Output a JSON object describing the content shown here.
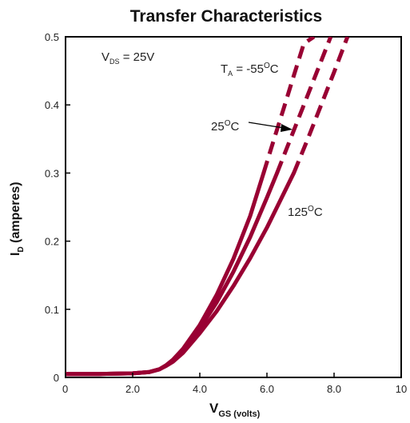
{
  "chart_data": {
    "type": "line",
    "title": "Transfer Characteristics",
    "xlabel": {
      "main": "V",
      "sub": "GS (volts)"
    },
    "ylabel": {
      "main": "I",
      "sub": "D",
      "rest": " (amperes)"
    },
    "xlim": [
      0,
      10
    ],
    "ylim": [
      0,
      0.5
    ],
    "x_ticks": [
      "0",
      "2.0",
      "4.0",
      "6.0",
      "8.0",
      "10"
    ],
    "y_ticks": [
      "0",
      "0.1",
      "0.2",
      "0.3",
      "0.4",
      "0.5"
    ],
    "grid": false,
    "color": "#990033",
    "annotations": {
      "vds": {
        "main": "V",
        "sub": "DS",
        "rest": " = 25V"
      },
      "ta": {
        "main": "T",
        "sub": "A",
        "rest": " = -55",
        "sup": "O",
        "end": "C"
      },
      "t25": {
        "main": "25",
        "sup": "O",
        "end": "C"
      },
      "t125": {
        "main": "125",
        "sup": "O",
        "end": "C"
      }
    },
    "series": [
      {
        "label": "-55°C",
        "solid": {
          "x": [
            0,
            1,
            2,
            2.5,
            2.8,
            3.0,
            3.2,
            3.5,
            4.0,
            4.5,
            5.0,
            5.5,
            5.9
          ],
          "y": [
            0.005,
            0.005,
            0.006,
            0.008,
            0.012,
            0.018,
            0.026,
            0.042,
            0.077,
            0.121,
            0.174,
            0.237,
            0.3
          ]
        },
        "dashed": {
          "x": [
            5.9,
            6.2,
            6.5,
            6.8,
            7.1,
            7.4
          ],
          "y": [
            0.3,
            0.348,
            0.395,
            0.443,
            0.49,
            0.5
          ]
        }
      },
      {
        "label": "25°C",
        "solid": {
          "x": [
            0,
            1,
            2,
            2.5,
            2.8,
            3.0,
            3.2,
            3.5,
            4.0,
            4.5,
            5.0,
            5.5,
            6.0,
            6.3
          ],
          "y": [
            0.005,
            0.005,
            0.006,
            0.008,
            0.012,
            0.018,
            0.025,
            0.04,
            0.072,
            0.11,
            0.155,
            0.206,
            0.264,
            0.3
          ]
        },
        "dashed": {
          "x": [
            6.3,
            6.7,
            7.1,
            7.5,
            7.9
          ],
          "y": [
            0.3,
            0.35,
            0.4,
            0.45,
            0.5
          ]
        }
      },
      {
        "label": "125°C",
        "solid": {
          "x": [
            0,
            1,
            2,
            2.5,
            2.8,
            3.0,
            3.2,
            3.5,
            4.0,
            4.5,
            5.0,
            5.5,
            6.0,
            6.5,
            6.8
          ],
          "y": [
            0.005,
            0.005,
            0.006,
            0.008,
            0.012,
            0.017,
            0.023,
            0.036,
            0.065,
            0.097,
            0.134,
            0.175,
            0.22,
            0.27,
            0.3
          ]
        },
        "dashed": {
          "x": [
            6.8,
            7.2,
            7.6,
            8.0,
            8.4
          ],
          "y": [
            0.3,
            0.348,
            0.398,
            0.448,
            0.5
          ]
        }
      }
    ]
  }
}
